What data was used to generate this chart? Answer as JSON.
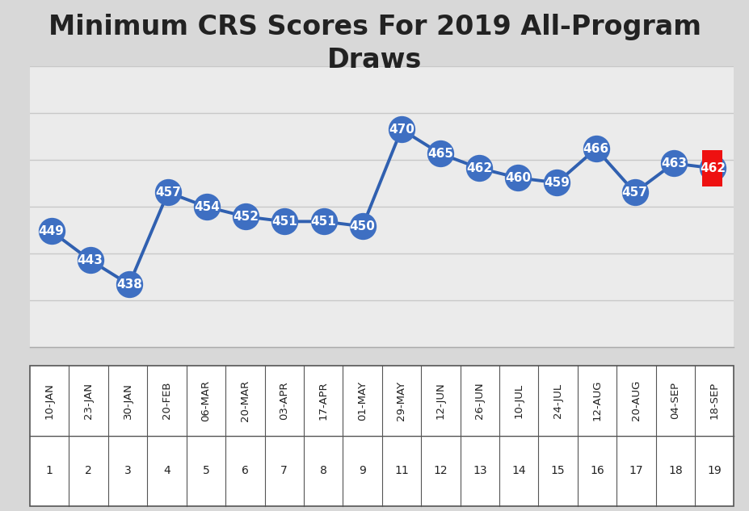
{
  "title": "Minimum CRS Scores For 2019 All-Program\nDraws",
  "x_labels": [
    "10-JAN",
    "23-JAN",
    "30-JAN",
    "20-FEB",
    "06-MAR",
    "20-MAR",
    "03-APR",
    "17-APR",
    "01-MAY",
    "29-MAY",
    "12-JUN",
    "26-JUN",
    "10-JUL",
    "24-JUL",
    "12-AUG",
    "20-AUG",
    "04-SEP",
    "18-SEP"
  ],
  "x_numbers": [
    "1",
    "2",
    "3",
    "4",
    "5",
    "6",
    "7",
    "8",
    "9",
    "11",
    "12",
    "13",
    "14",
    "15",
    "16",
    "17",
    "18",
    "19"
  ],
  "y_values": [
    449,
    443,
    438,
    457,
    454,
    452,
    451,
    451,
    450,
    470,
    465,
    462,
    460,
    459,
    466,
    457,
    463,
    462
  ],
  "line_color": "#3060B0",
  "marker_color": "#3E6FC2",
  "last_marker_color": "#EE1111",
  "background_color": "#D8D8D8",
  "plot_bg_color": "#EBEBEB",
  "title_color": "#222222",
  "title_fontsize": 24,
  "label_fontsize": 10,
  "value_fontsize": 11,
  "grid_color": "#C8C8C8",
  "ylim_min": 425,
  "ylim_max": 483
}
